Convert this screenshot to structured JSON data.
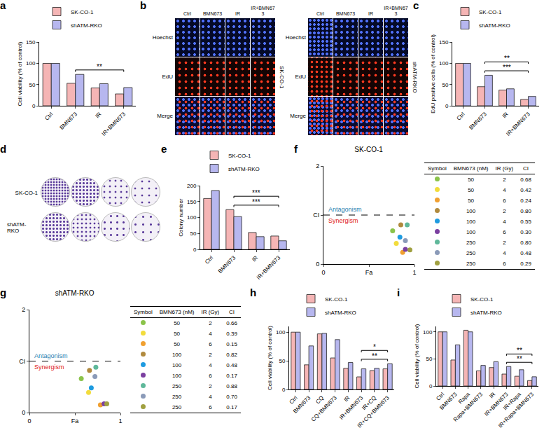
{
  "chart_data": [
    {
      "panel": "a",
      "type": "bar",
      "y_label": "Cell viability (% of control)",
      "categories": [
        "Ctrl",
        "BMN673",
        "IR",
        "IR+BMN673"
      ],
      "series": [
        {
          "name": "SK-CO-1",
          "color": "#f5b5b5",
          "values": [
            100,
            53,
            42,
            28
          ]
        },
        {
          "name": "shATM-RKO",
          "color": "#b7b7ef",
          "values": [
            100,
            74,
            52,
            43
          ]
        }
      ],
      "ylim": [
        0,
        150
      ],
      "yticks": [
        0,
        50,
        100,
        150
      ],
      "legend": "top",
      "grid": false,
      "significance": [
        {
          "from": "BMN673",
          "to": "IR+BMN673",
          "text": "**"
        }
      ]
    },
    {
      "panel": "c",
      "type": "bar",
      "y_label": "EdU positive cells (% of control)",
      "categories": [
        "Ctrl",
        "BMN673",
        "IR",
        "IR+BMN673"
      ],
      "series": [
        {
          "name": "SK-CO-1",
          "color": "#f5b5b5",
          "values": [
            100,
            45,
            37,
            15
          ]
        },
        {
          "name": "shATM-RKO",
          "color": "#b7b7ef",
          "values": [
            100,
            72,
            40,
            22
          ]
        }
      ],
      "ylim": [
        0,
        150
      ],
      "yticks": [
        0,
        50,
        100,
        150
      ],
      "legend": "top",
      "grid": false,
      "significance": [
        {
          "from": "BMN673",
          "to": "IR+BMN673",
          "text": "***"
        },
        {
          "from": "BMN673",
          "to": "IR+BMN673",
          "text": "**"
        }
      ]
    },
    {
      "panel": "e",
      "type": "bar",
      "y_label": "Colony number",
      "categories": [
        "Ctrl",
        "BMN673",
        "IR",
        "IR+BMN673"
      ],
      "series": [
        {
          "name": "SK-CO-1",
          "color": "#f5b5b5",
          "values": [
            160,
            125,
            53,
            42
          ]
        },
        {
          "name": "shATM-RKO",
          "color": "#b7b7ef",
          "values": [
            185,
            103,
            40,
            27
          ]
        }
      ],
      "ylim": [
        0,
        200
      ],
      "yticks": [
        0,
        50,
        100,
        150,
        200
      ],
      "legend": "top",
      "grid": false,
      "significance": [
        {
          "from": "BMN673",
          "to": "IR+BMN673",
          "text": "***"
        },
        {
          "from": "BMN673",
          "to": "IR+BMN673",
          "text": "***"
        }
      ]
    },
    {
      "panel": "f",
      "type": "scatter",
      "title": "SK-CO-1",
      "marker": "circle",
      "line_style": "dash",
      "x": [
        0.76,
        0.8,
        0.87,
        0.85,
        0.84,
        0.9,
        0.92,
        0.9,
        0.95
      ],
      "values": [
        0.68,
        0.42,
        0.24,
        0.8,
        0.55,
        0.3,
        0.8,
        0.48,
        0.29
      ],
      "value_labels": [
        "0.68",
        "0.42",
        "0.24",
        "0.80",
        "0.55",
        "0.30",
        "0.80",
        "0.48",
        "0.29"
      ],
      "colors": [
        "#8bc34a",
        "#f2dc3c",
        "#f0a030",
        "#b08a3e",
        "#1e9be0",
        "#7b3fa0",
        "#5fb89a",
        "#8a9ab8",
        "#a0a040"
      ],
      "bmn673_nM": [
        50,
        50,
        50,
        100,
        100,
        100,
        250,
        250,
        250
      ],
      "ir_Gy": [
        2,
        4,
        6,
        2,
        4,
        6,
        2,
        4,
        6
      ],
      "table_columns": [
        "Symbol",
        "BMN673 (nM)",
        "IR (Gy)",
        "CI"
      ],
      "xlim": [
        0,
        1
      ],
      "xticks": [
        0,
        {
          "value": 0.5,
          "label": "Fa"
        },
        1
      ],
      "ylim": [
        0,
        2
      ],
      "yticks": [
        0,
        {
          "value": 1,
          "label": "CI"
        },
        2
      ],
      "threshold": 1,
      "regions": [
        {
          "text": "Antagonism",
          "color": "#2a7fb0"
        },
        {
          "text": "Synergism",
          "color": "#e02020"
        }
      ]
    },
    {
      "panel": "g",
      "type": "scatter",
      "title": "shATM-RKO",
      "marker": "circle",
      "line_style": "dash",
      "x": [
        0.57,
        0.65,
        0.78,
        0.66,
        0.68,
        0.82,
        0.73,
        0.72,
        0.85
      ],
      "values": [
        0.66,
        0.39,
        0.15,
        0.82,
        0.48,
        0.17,
        0.88,
        0.7,
        0.17
      ],
      "value_labels": [
        "0.66",
        "0.39",
        "0.15",
        "0.82",
        "0.48",
        "0.17",
        "0.88",
        "0.70",
        "0.17"
      ],
      "colors": [
        "#8bc34a",
        "#f2dc3c",
        "#f0a030",
        "#b08a3e",
        "#1e9be0",
        "#7b3fa0",
        "#5fb89a",
        "#8a9ab8",
        "#a0a040"
      ],
      "bmn673_nM": [
        50,
        50,
        50,
        100,
        100,
        100,
        250,
        250,
        250
      ],
      "ir_Gy": [
        2,
        4,
        6,
        2,
        4,
        6,
        2,
        4,
        6
      ],
      "table_columns": [
        "Symbol",
        "BMN673 (nM)",
        "IR (Gy)",
        "CI"
      ],
      "xlim": [
        0,
        1
      ],
      "xticks": [
        0,
        {
          "value": 0.5,
          "label": "Fa"
        },
        1
      ],
      "ylim": [
        0,
        2
      ],
      "yticks": [
        0,
        {
          "value": 1,
          "label": "CI"
        },
        2
      ],
      "threshold": 1,
      "regions": [
        {
          "text": "Antagonism",
          "color": "#2a7fb0"
        },
        {
          "text": "Synergism",
          "color": "#e02020"
        }
      ]
    },
    {
      "panel": "h",
      "type": "bar",
      "y_label": "Cell viability (% of control)",
      "categories": [
        "Ctrl",
        "BMN673",
        "CQ",
        "CQ+BMN673",
        "IR",
        "IR+BMN673",
        "IR+CQ",
        "IR+CQ+BMN673"
      ],
      "series": [
        {
          "name": "SK-CO-1",
          "color": "#f5b5b5",
          "values": [
            100,
            43,
            97,
            55,
            37,
            22,
            33,
            36
          ]
        },
        {
          "name": "shATM-RKO",
          "color": "#b7b7ef",
          "values": [
            100,
            76,
            98,
            87,
            47,
            36,
            37,
            45
          ]
        }
      ],
      "ylim": [
        0,
        110
      ],
      "yticks": [
        0,
        50,
        100
      ],
      "legend": "top",
      "grid": false,
      "significance": [
        {
          "from": "IR+BMN673",
          "to": "IR+CQ+BMN673",
          "text": "**"
        },
        {
          "from": "IR+BMN673",
          "to": "IR+CQ+BMN673",
          "text": "*"
        }
      ]
    },
    {
      "panel": "i",
      "type": "bar",
      "y_label": "Cell viability (% of control)",
      "categories": [
        "Ctrl",
        "BMN673",
        "Rapa",
        "Rapa+BMN673",
        "IR",
        "IR+BMN673",
        "IR+Rapa",
        "IR+Rapa+BMN673"
      ],
      "series": [
        {
          "name": "SK-CO-1",
          "color": "#f5b5b5",
          "values": [
            100,
            48,
            103,
            28,
            34,
            22,
            18,
            10
          ]
        },
        {
          "name": "shATM-RKO",
          "color": "#b7b7ef",
          "values": [
            100,
            76,
            100,
            38,
            45,
            36,
            30,
            17
          ]
        }
      ],
      "ylim": [
        0,
        110
      ],
      "yticks": [
        0,
        50,
        100
      ],
      "legend": "top",
      "grid": false,
      "significance": [
        {
          "from": "IR+BMN673",
          "to": "IR+Rapa+BMN673",
          "text": "**"
        },
        {
          "from": "IR+BMN673",
          "to": "IR+Rapa+BMN673",
          "text": "**"
        }
      ]
    }
  ],
  "figures": [
    {
      "panel": "b",
      "columns": [
        "Ctrl",
        "BMN673",
        "IR",
        "IR+BMN673"
      ],
      "rows": [
        "Hoechst",
        "EdU",
        "Merge"
      ],
      "cell_lines": [
        "SK-CO-1",
        "shATM-RKO"
      ]
    },
    {
      "panel": "d",
      "rows": [
        "SK-CO-1",
        "shATM-RKO"
      ],
      "columns_count_from": "b"
    }
  ]
}
